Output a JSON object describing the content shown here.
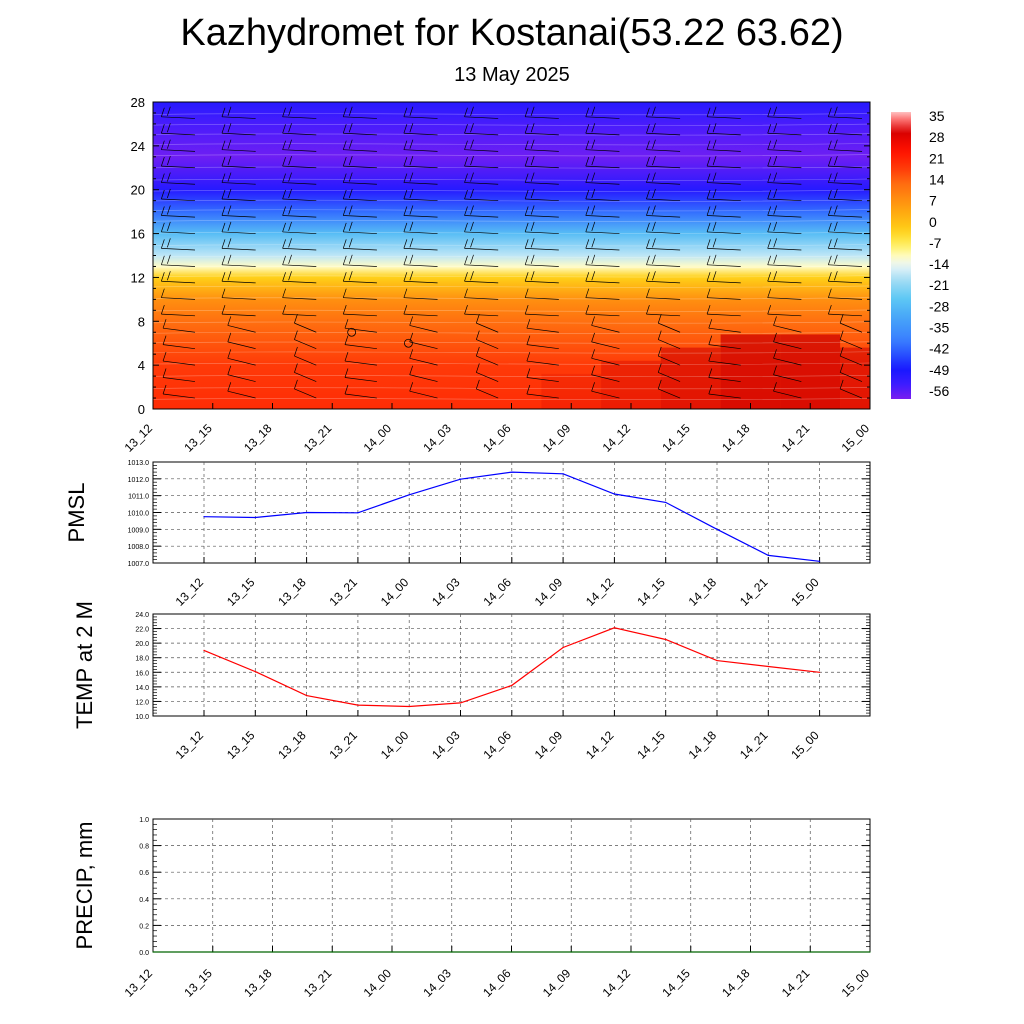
{
  "title": "Kazhydromet for Kostanai(53.22 63.62)",
  "subtitle": "13 May 2025",
  "time_labels": [
    "13_12",
    "13_15",
    "13_18",
    "13_21",
    "14_00",
    "14_03",
    "14_06",
    "14_09",
    "14_12",
    "14_15",
    "14_18",
    "14_21",
    "15_00"
  ],
  "colors": {
    "pmsl_line": "#0000ff",
    "temp_line": "#ff0000",
    "precip_line": "#006400",
    "grid": "#555555"
  },
  "chart_data": [
    {
      "type": "heatmap",
      "title": "",
      "xlabel": "",
      "ylabel": "",
      "x": [
        "13_12",
        "13_15",
        "13_18",
        "13_21",
        "14_00",
        "14_03",
        "14_06",
        "14_09",
        "14_12",
        "14_15",
        "14_18",
        "14_21",
        "15_00"
      ],
      "y_ticks": [
        "0",
        "4",
        "8",
        "12",
        "16",
        "20",
        "24",
        "28"
      ],
      "ylim": [
        0,
        28
      ],
      "colorbar": {
        "labels": [
          "35",
          "28",
          "21",
          "14",
          "7",
          "0",
          "-7",
          "-14",
          "-21",
          "-28",
          "-35",
          "-42",
          "-49",
          "-56"
        ],
        "range": [
          -60,
          37
        ]
      },
      "temperature_profile": [
        {
          "level": 0,
          "value": 20
        },
        {
          "level": 4,
          "value": 18
        },
        {
          "level": 8,
          "value": 12
        },
        {
          "level": 10,
          "value": 7
        },
        {
          "level": 12,
          "value": -3
        },
        {
          "level": 13,
          "value": -12
        },
        {
          "level": 14,
          "value": -18
        },
        {
          "level": 16,
          "value": -28
        },
        {
          "level": 18,
          "value": -42
        },
        {
          "level": 20,
          "value": -52
        },
        {
          "level": 23,
          "value": -59
        },
        {
          "level": 26,
          "value": -56
        },
        {
          "level": 28,
          "value": -52
        }
      ],
      "near_surface_warming": [
        0,
        0,
        0,
        0,
        0,
        0,
        0,
        1,
        2,
        3,
        4,
        4,
        3
      ],
      "wind_barbs": "present",
      "grid": false
    },
    {
      "type": "line",
      "ylabel": "PMSL",
      "categories": [
        "13_12",
        "13_15",
        "13_18",
        "13_21",
        "14_00",
        "14_03",
        "14_06",
        "14_09",
        "14_12",
        "14_15",
        "14_18",
        "14_21",
        "15_00"
      ],
      "values": [
        1009.75,
        1009.7,
        1010.0,
        1009.98,
        1011.05,
        1011.98,
        1012.4,
        1012.3,
        1011.1,
        1010.6,
        1009.0,
        1007.45,
        1007.1
      ],
      "ylim": [
        1007.0,
        1013.0
      ],
      "y_ticks": [
        "1007.0",
        "1008.0",
        "1009.0",
        "1010.0",
        "1011.0",
        "1012.0",
        "1013.0"
      ],
      "grid": true
    },
    {
      "type": "line",
      "ylabel": "TEMP at 2 M",
      "categories": [
        "13_12",
        "13_15",
        "13_18",
        "13_21",
        "14_00",
        "14_03",
        "14_06",
        "14_09",
        "14_12",
        "14_15",
        "14_18",
        "14_21",
        "15_00"
      ],
      "values": [
        19.0,
        16.1,
        12.8,
        11.5,
        11.3,
        11.8,
        14.2,
        19.4,
        22.1,
        20.5,
        17.6,
        16.8,
        16.0
      ],
      "ylim": [
        10.0,
        24.0
      ],
      "y_ticks": [
        "10.0",
        "12.0",
        "14.0",
        "16.0",
        "18.0",
        "20.0",
        "22.0",
        "24.0"
      ],
      "grid": true
    },
    {
      "type": "line",
      "ylabel": "PRECIP, mm",
      "categories": [
        "13_12",
        "13_15",
        "13_18",
        "13_21",
        "14_00",
        "14_03",
        "14_06",
        "14_09",
        "14_12",
        "14_15",
        "14_18",
        "14_21",
        "15_00"
      ],
      "values": [
        0,
        0,
        0,
        0,
        0,
        0,
        0,
        0,
        0,
        0,
        0,
        0,
        0
      ],
      "ylim": [
        0.0,
        1.0
      ],
      "y_ticks": [
        "0.0",
        "0.2",
        "0.4",
        "0.6",
        "0.8",
        "1.0"
      ],
      "grid": true
    }
  ]
}
